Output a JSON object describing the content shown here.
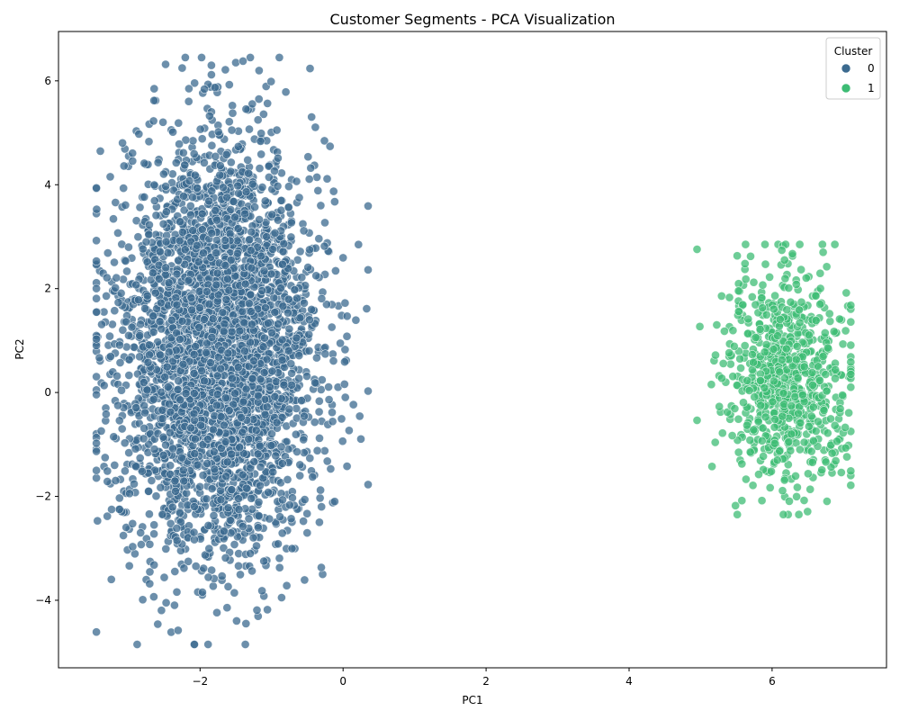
{
  "chart_data": {
    "type": "scatter",
    "title": "Customer Segments - PCA Visualization",
    "xlabel": "PC1",
    "ylabel": "PC2",
    "xlim": [
      -3.98,
      7.6
    ],
    "ylim": [
      -5.3,
      6.95
    ],
    "xticks": [
      -2,
      0,
      2,
      4,
      6
    ],
    "yticks": [
      -4,
      -2,
      0,
      2,
      4,
      6
    ],
    "xtick_labels": [
      "−2",
      "0",
      "2",
      "4",
      "6"
    ],
    "ytick_labels": [
      "−4",
      "−2",
      "0",
      "2",
      "4",
      "6"
    ],
    "grid": false,
    "legend": {
      "title": "Cluster",
      "placement": "upper-right",
      "entries": [
        "0",
        "1"
      ]
    },
    "series": [
      {
        "name": "0",
        "color": "#3b6a8f",
        "distribution": {
          "center": [
            -1.75,
            0.85
          ],
          "spread": [
            0.68,
            1.95
          ],
          "count": 3800,
          "x_range": [
            -3.45,
            0.35
          ],
          "y_range": [
            -4.85,
            6.45
          ]
        }
      },
      {
        "name": "1",
        "color": "#3dbc74",
        "distribution": {
          "center": [
            6.2,
            0.3
          ],
          "spread": [
            0.45,
            1.0
          ],
          "count": 750,
          "x_range": [
            4.95,
            7.1
          ],
          "y_range": [
            -2.35,
            2.85
          ]
        }
      }
    ]
  }
}
